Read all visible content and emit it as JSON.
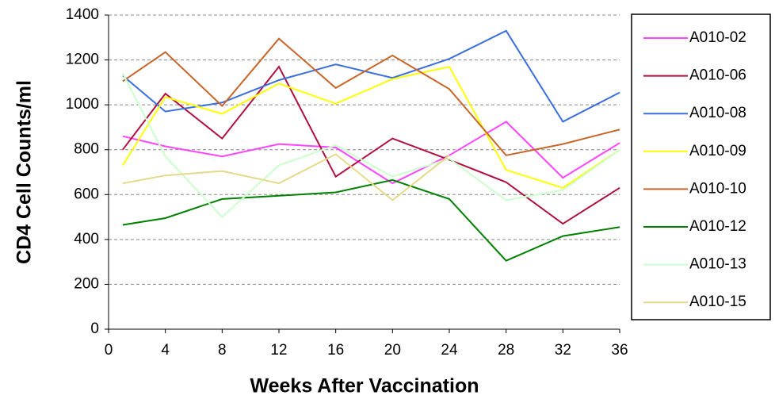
{
  "chart_data": {
    "type": "line",
    "x_label": "Weeks After Vaccination",
    "y_label": "CD4 Cell Counts/ml",
    "x": [
      1,
      4,
      8,
      12,
      16,
      20,
      24,
      28,
      32,
      36
    ],
    "xlim": [
      0,
      36
    ],
    "xticks": [
      0,
      4,
      8,
      12,
      16,
      20,
      24,
      28,
      32,
      36
    ],
    "ylim": [
      0,
      1400
    ],
    "yticks": [
      0,
      200,
      400,
      600,
      800,
      1000,
      1200,
      1400
    ],
    "grid": true,
    "legend": "right",
    "series": [
      {
        "name": "A010-02",
        "color": "#ff44ff",
        "values": [
          860,
          815,
          770,
          825,
          810,
          650,
          775,
          925,
          675,
          830
        ]
      },
      {
        "name": "A010-06",
        "color": "#b01040",
        "values": [
          800,
          1050,
          850,
          1170,
          680,
          850,
          755,
          655,
          470,
          630
        ]
      },
      {
        "name": "A010-08",
        "color": "#3a6fe0",
        "values": [
          1130,
          970,
          1010,
          1110,
          1180,
          1120,
          1205,
          1330,
          925,
          1055
        ]
      },
      {
        "name": "A010-09",
        "color": "#ffff00",
        "values": [
          730,
          1035,
          960,
          1095,
          1005,
          1115,
          1170,
          710,
          630,
          800
        ]
      },
      {
        "name": "A010-10",
        "color": "#c8662a",
        "values": [
          1105,
          1235,
          995,
          1295,
          1075,
          1220,
          1070,
          775,
          825,
          890
        ]
      },
      {
        "name": "A010-12",
        "color": "#008000",
        "values": [
          465,
          495,
          580,
          595,
          610,
          665,
          580,
          305,
          415,
          455
        ]
      },
      {
        "name": "A010-13",
        "color": "#ccffcc",
        "values": [
          1140,
          770,
          500,
          730,
          820,
          680,
          760,
          575,
          620,
          800
        ]
      },
      {
        "name": "A010-15",
        "color": "#e6d98a",
        "values": [
          650,
          685,
          705,
          650,
          780,
          575,
          775,
          null,
          null,
          null
        ]
      }
    ]
  }
}
